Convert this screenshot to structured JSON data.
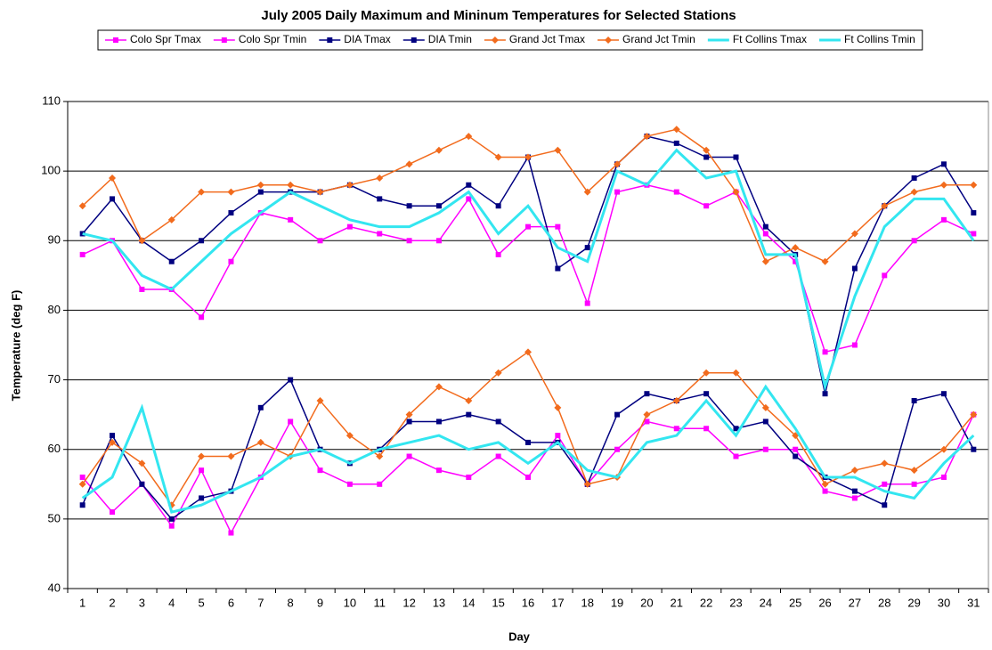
{
  "chart_data": {
    "type": "line",
    "title": "July 2005 Daily Maximum and Mininum Temperatures for Selected Stations",
    "x_label": "Day",
    "y_label": "Temperature (deg F)",
    "categories": [
      "1",
      "2",
      "3",
      "4",
      "5",
      "6",
      "7",
      "8",
      "9",
      "10",
      "11",
      "12",
      "13",
      "14",
      "15",
      "16",
      "17",
      "18",
      "19",
      "20",
      "21",
      "22",
      "23",
      "24",
      "25",
      "26",
      "27",
      "28",
      "29",
      "30",
      "31"
    ],
    "ylim": [
      40,
      110
    ],
    "yticks": [
      40,
      50,
      60,
      70,
      80,
      90,
      100,
      110
    ],
    "grid": true,
    "legend": "top",
    "series": [
      {
        "name": "Colo Spr Tmax",
        "color": "#ff00ff",
        "marker": "square",
        "values": [
          88,
          90,
          83,
          83,
          79,
          87,
          94,
          93,
          90,
          92,
          91,
          90,
          90,
          96,
          88,
          92,
          92,
          81,
          97,
          98,
          97,
          95,
          97,
          91,
          87,
          74,
          75,
          85,
          90,
          93,
          91
        ]
      },
      {
        "name": "Colo Spr Tmin",
        "color": "#ff00ff",
        "marker": "square",
        "values": [
          56,
          51,
          55,
          49,
          57,
          48,
          56,
          64,
          57,
          55,
          55,
          59,
          57,
          56,
          59,
          56,
          62,
          55,
          60,
          64,
          63,
          63,
          59,
          60,
          60,
          54,
          53,
          55,
          55,
          56,
          65
        ]
      },
      {
        "name": "DIA Tmax",
        "color": "#000080",
        "marker": "square",
        "values": [
          91,
          96,
          90,
          87,
          90,
          94,
          97,
          97,
          97,
          98,
          96,
          95,
          95,
          98,
          95,
          102,
          86,
          89,
          101,
          105,
          104,
          102,
          102,
          92,
          88,
          68,
          86,
          95,
          99,
          101,
          94
        ]
      },
      {
        "name": "DIA Tmin",
        "color": "#000080",
        "marker": "square",
        "values": [
          52,
          62,
          55,
          50,
          53,
          54,
          66,
          70,
          60,
          58,
          60,
          64,
          64,
          65,
          64,
          61,
          61,
          55,
          65,
          68,
          67,
          68,
          63,
          64,
          59,
          56,
          54,
          52,
          67,
          68,
          60
        ]
      },
      {
        "name": "Grand Jct Tmax",
        "color": "#f26b1d",
        "marker": "diamond",
        "values": [
          95,
          99,
          90,
          93,
          97,
          97,
          98,
          98,
          97,
          98,
          99,
          101,
          103,
          105,
          102,
          102,
          103,
          97,
          101,
          105,
          106,
          103,
          97,
          87,
          89,
          87,
          91,
          95,
          97,
          98,
          98
        ]
      },
      {
        "name": "Grand Jct Tmin",
        "color": "#f26b1d",
        "marker": "diamond",
        "values": [
          55,
          61,
          58,
          52,
          59,
          59,
          61,
          59,
          67,
          62,
          59,
          65,
          69,
          67,
          71,
          74,
          66,
          55,
          56,
          65,
          67,
          71,
          71,
          66,
          62,
          55,
          57,
          58,
          57,
          60,
          65
        ]
      },
      {
        "name": "Ft Collins Tmax",
        "color": "#33e6f0",
        "marker": "none",
        "values": [
          91,
          90,
          85,
          83,
          87,
          91,
          94,
          97,
          95,
          93,
          92,
          92,
          94,
          97,
          91,
          95,
          89,
          87,
          100,
          98,
          103,
          99,
          100,
          88,
          88,
          69,
          82,
          92,
          96,
          96,
          90
        ]
      },
      {
        "name": "Ft Collins Tmin",
        "color": "#33e6f0",
        "marker": "none",
        "values": [
          53,
          56,
          66,
          51,
          52,
          54,
          56,
          59,
          60,
          58,
          60,
          61,
          62,
          60,
          61,
          58,
          61,
          57,
          56,
          61,
          62,
          67,
          62,
          69,
          63,
          56,
          56,
          54,
          53,
          58,
          62
        ]
      }
    ]
  }
}
